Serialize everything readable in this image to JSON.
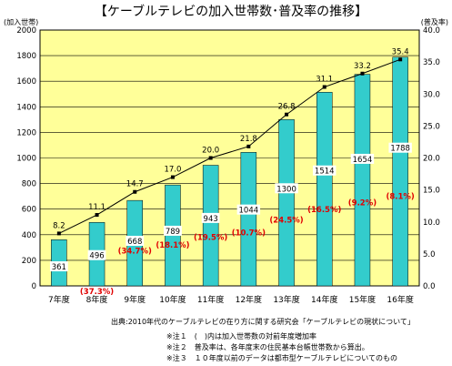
{
  "chart_data": {
    "type": "bar",
    "title": "【ケーブルテレビの加入世帯数･普及率の推移】",
    "left_axis_unit": "(加入世帯)",
    "right_axis_unit": "(普及率)",
    "left_ylim": [
      0,
      2000
    ],
    "right_ylim": [
      0,
      40
    ],
    "left_ticks": [
      "0",
      "200",
      "400",
      "600",
      "800",
      "1000",
      "1200",
      "1400",
      "1600",
      "1800",
      "2000"
    ],
    "right_ticks": [
      "0.0",
      "5.0",
      "10.0",
      "15.0",
      "20.0",
      "25.0",
      "30.0",
      "35.0",
      "40.0"
    ],
    "categories": [
      "7年度",
      "8年度",
      "9年度",
      "10年度",
      "11年度",
      "12年度",
      "13年度",
      "14年度",
      "15年度",
      "16年度"
    ],
    "series": [
      {
        "type": "bar",
        "axis": "left",
        "values": [
          361,
          496,
          668,
          789,
          943,
          1044,
          1300,
          1514,
          1654,
          1788
        ],
        "labels": [
          "361",
          "496",
          "668",
          "789",
          "943",
          "1044",
          "1300",
          "1514",
          "1654",
          "1788"
        ]
      },
      {
        "type": "line",
        "axis": "right",
        "values": [
          8.2,
          11.1,
          14.7,
          17.0,
          20.0,
          21.8,
          26.8,
          31.1,
          33.2,
          35.4
        ],
        "labels": [
          "8.2",
          "11.1",
          "14.7",
          "17.0",
          "20.0",
          "21.8",
          "26.8",
          "31.1",
          "33.2",
          "35.4"
        ]
      }
    ],
    "growth_labels": [
      "",
      "(37.3%)",
      "(34.7%)",
      "(18.1%)",
      "(19.5%)",
      "(10.7%)",
      "(24.5%)",
      "(16.5%)",
      "(9.2%)",
      "(8.1%)"
    ],
    "notes": [
      "出典:2010年代のケーブルテレビの在り方に関する研究会「ケーブルテレビの現状について」",
      "※注１　(　)内は加入世帯数の対前年度増加率",
      "※注２　普及率は、各年度末の住民基本台帳世帯数から算出。",
      "※注３　１０年度以前のデータは都市型ケーブルテレビについてのもの"
    ],
    "colors": {
      "plot_background": "#ffff99",
      "bar": "#33cccc",
      "line": "#000000",
      "growth_text": "#e00000"
    },
    "grid": "horizontal"
  }
}
